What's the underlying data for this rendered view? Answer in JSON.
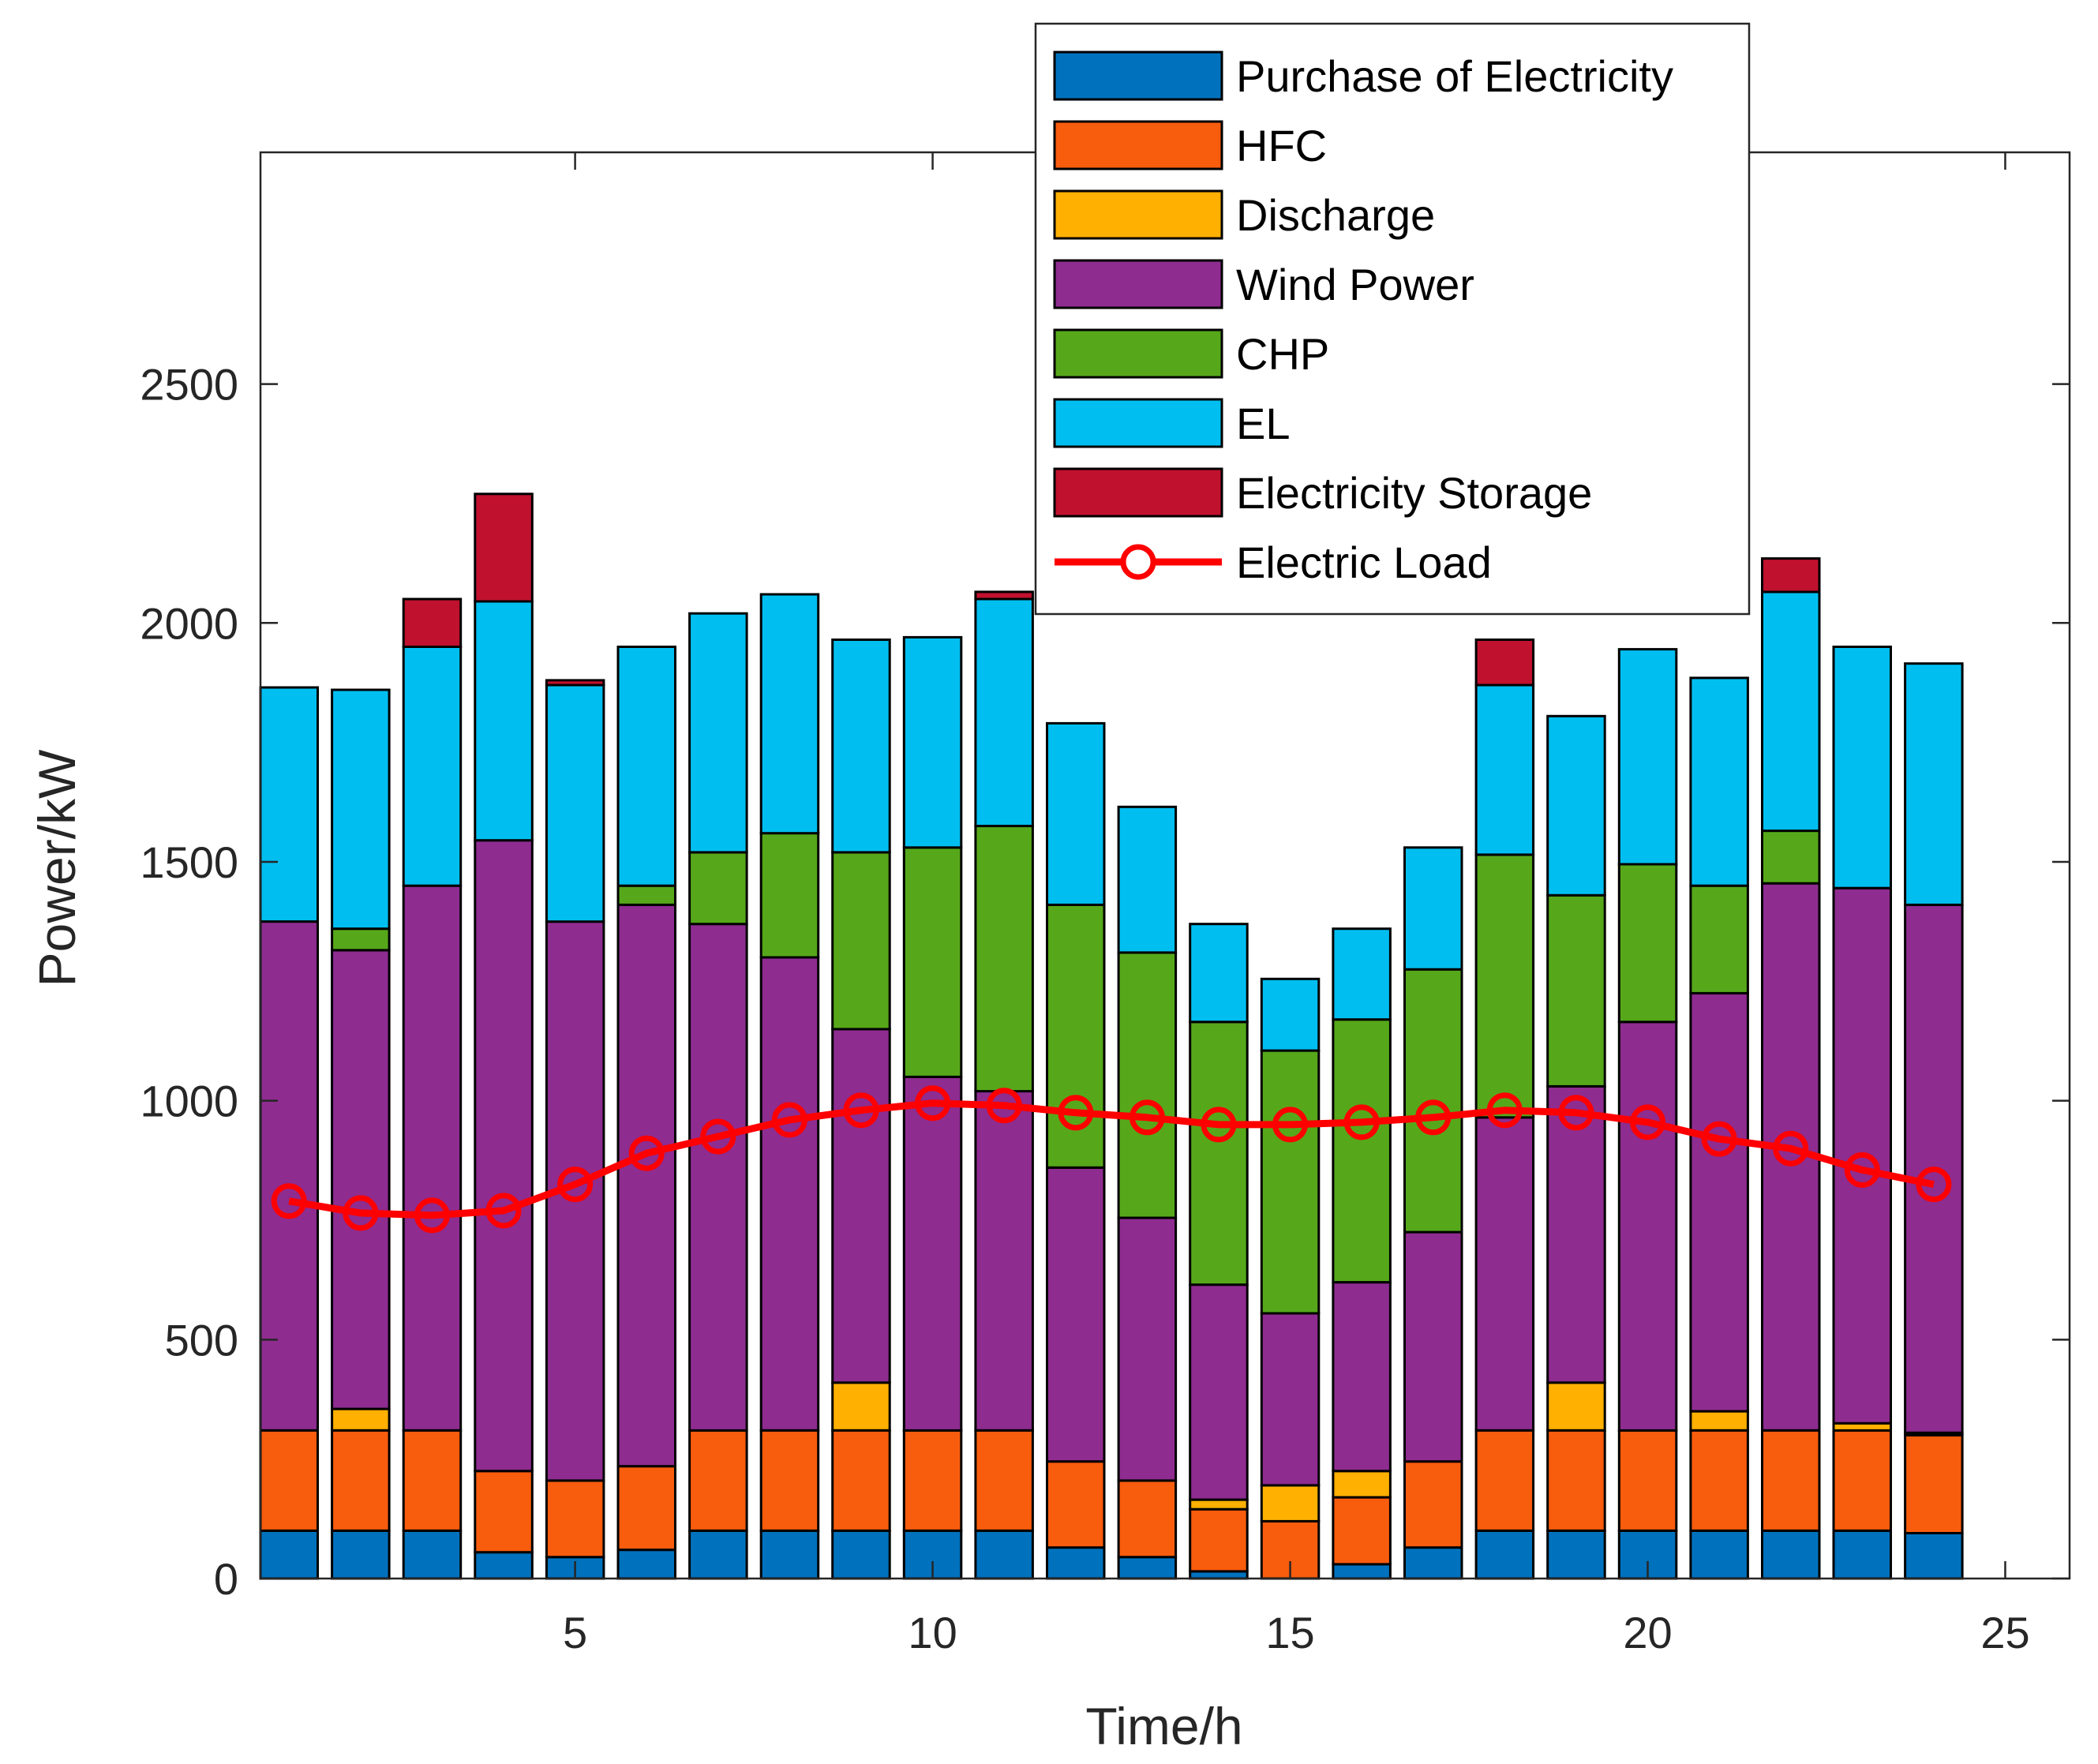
{
  "chart_data": {
    "type": "bar",
    "stacked": true,
    "title": "",
    "xlabel": "Time/h",
    "ylabel": "Power/kW",
    "xlim": [
      0.6,
      25.9
    ],
    "ylim": [
      0,
      2985
    ],
    "xticks": [
      5,
      10,
      15,
      20,
      25
    ],
    "yticks": [
      0,
      500,
      1000,
      1500,
      2000,
      2500
    ],
    "x": [
      1,
      2,
      3,
      4,
      5,
      6,
      7,
      8,
      9,
      10,
      11,
      12,
      13,
      14,
      15,
      16,
      17,
      18,
      19,
      20,
      21,
      22,
      23,
      24
    ],
    "legend_position": "top-right",
    "series": [
      {
        "name": "Purchase of Electricity",
        "color": "#0072BD",
        "values": [
          100,
          100,
          100,
          55,
          45,
          60,
          100,
          100,
          100,
          100,
          100,
          65,
          45,
          15,
          0,
          30,
          65,
          100,
          100,
          100,
          100,
          100,
          100,
          95
        ]
      },
      {
        "name": "HFC",
        "color": "#F85C0D",
        "values": [
          210,
          210,
          210,
          170,
          160,
          175,
          210,
          210,
          210,
          210,
          210,
          180,
          160,
          130,
          120,
          140,
          180,
          210,
          210,
          210,
          210,
          210,
          210,
          205
        ]
      },
      {
        "name": "Discharge",
        "color": "#FFB000",
        "values": [
          0,
          45,
          0,
          0,
          0,
          0,
          0,
          0,
          100,
          0,
          0,
          0,
          0,
          20,
          75,
          55,
          0,
          0,
          100,
          0,
          40,
          0,
          15,
          5
        ]
      },
      {
        "name": "Wind Power",
        "color": "#8E2C90",
        "values": [
          1065,
          960,
          1140,
          1320,
          1170,
          1175,
          1060,
          990,
          740,
          740,
          710,
          615,
          550,
          450,
          360,
          395,
          480,
          655,
          620,
          855,
          875,
          1145,
          1120,
          1105
        ]
      },
      {
        "name": "CHP",
        "color": "#56A81A",
        "values": [
          0,
          45,
          0,
          0,
          0,
          40,
          150,
          260,
          370,
          480,
          555,
          550,
          555,
          550,
          550,
          550,
          550,
          550,
          400,
          330,
          225,
          110,
          0,
          0
        ]
      },
      {
        "name": "EL",
        "color": "#00BFF0",
        "values": [
          490,
          500,
          500,
          500,
          495,
          500,
          500,
          500,
          445,
          440,
          475,
          380,
          305,
          205,
          150,
          190,
          255,
          355,
          375,
          450,
          435,
          500,
          505,
          505
        ]
      },
      {
        "name": "Electricity Storage",
        "color": "#C0112E",
        "values": [
          0,
          0,
          100,
          225,
          10,
          0,
          0,
          0,
          0,
          0,
          15,
          0,
          0,
          0,
          0,
          0,
          0,
          95,
          0,
          0,
          0,
          70,
          0,
          0
        ]
      }
    ],
    "line_series": {
      "name": "Electric Load",
      "color": "#FF0000",
      "marker": "circle",
      "values": [
        790,
        765,
        760,
        770,
        825,
        890,
        925,
        960,
        980,
        995,
        990,
        975,
        965,
        950,
        950,
        955,
        965,
        980,
        975,
        955,
        920,
        900,
        855,
        825
      ]
    }
  }
}
